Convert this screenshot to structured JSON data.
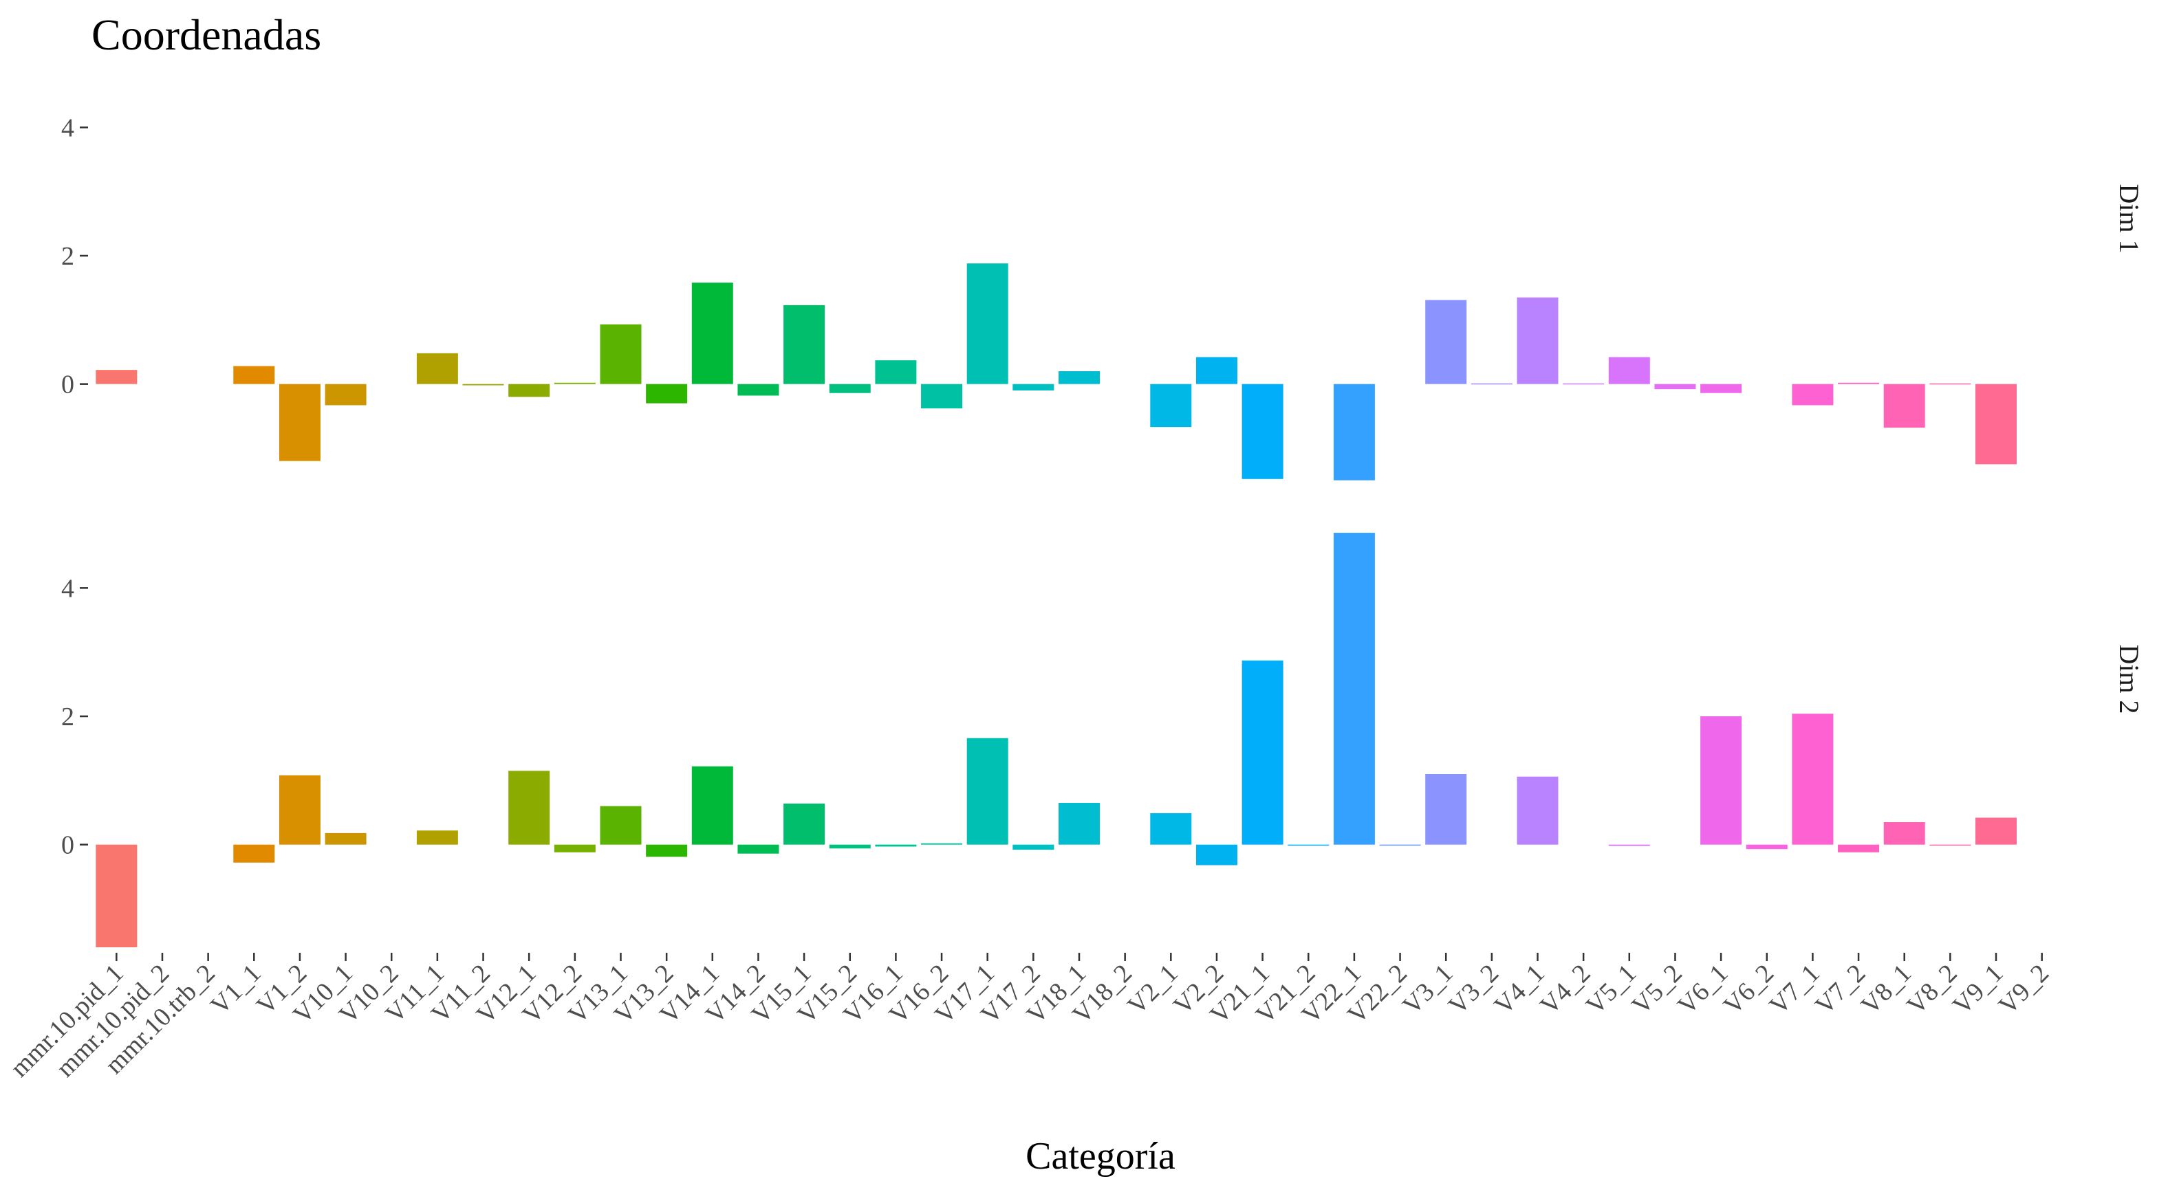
{
  "chart_data": {
    "type": "bar",
    "title": "Coordenadas",
    "xlabel": "Categoría",
    "ylabel": "",
    "ylim": [
      -1.6,
      4.4
    ],
    "yticks": [
      0,
      2,
      4
    ],
    "grid": false,
    "legend": "none",
    "facets": [
      "Dim 1",
      "Dim 2"
    ],
    "categories": [
      "mmr.10.pid_1",
      "mmr.10.pid_2",
      "mmr.10.trb_2",
      "V1_1",
      "V1_2",
      "V10_1",
      "V10_2",
      "V11_1",
      "V11_2",
      "V12_1",
      "V12_2",
      "V13_1",
      "V13_2",
      "V14_1",
      "V14_2",
      "V15_1",
      "V15_2",
      "V16_1",
      "V16_2",
      "V17_1",
      "V17_2",
      "V18_1",
      "V18_2",
      "V2_1",
      "V2_2",
      "V21_1",
      "V21_2",
      "V22_1",
      "V22_2",
      "V3_1",
      "V3_2",
      "V4_1",
      "V4_2",
      "V5_1",
      "V5_2",
      "V6_1",
      "V6_2",
      "V7_1",
      "V7_2",
      "V8_1",
      "V8_2",
      "V9_1",
      "V9_2"
    ],
    "colors": [
      "#F8766D",
      "#F17E4E",
      "#E7861B",
      "#DB8E00",
      "#CD9600",
      "#BE9C00",
      "#AEA200",
      "#9CA700",
      "#87AC00",
      "#6EB200",
      "#4CB500",
      "#00B81F",
      "#00BB44",
      "#00BE67",
      "#00C087",
      "#00C1A6",
      "#00C0BD",
      "#00BFC4",
      "#00BCD8",
      "#00B9E3",
      "#00B4EF",
      "#00ADFA",
      "#00A5FF",
      "#619CFF",
      "#8B95FF",
      "#A58AFF",
      "#C77CFF",
      "#D972FF",
      "#E76BF3",
      "#F066EA",
      "#FA62DB",
      "#FF61C9",
      "#FF63B6",
      "#FF679F",
      "#FF6C90",
      "#FC717F",
      "#F8766D",
      "#F8766D",
      "#F8766D",
      "#F8766D",
      "#F8766D",
      "#F8766D",
      "#F8766D"
    ],
    "bar_colors": [
      "#F8766D",
      "#F37A55",
      "#EA8331",
      "#E18A00",
      "#D89000",
      "#CB9600",
      "#BE9C00",
      "#B0A100",
      "#9FA600",
      "#8CAB00",
      "#76B000",
      "#5AB300",
      "#2DB600",
      "#00B938",
      "#00BC55",
      "#00BE6C",
      "#00C080",
      "#00C192",
      "#00C1A3",
      "#00C0B3",
      "#00C0C2",
      "#00BECF",
      "#00BBDB",
      "#00B8E5",
      "#00B3F0",
      "#00AEF9",
      "#00A8FF",
      "#34A0FF",
      "#6799FF",
      "#8B93FF",
      "#A58AFF",
      "#B983FF",
      "#CA7CFF",
      "#D874FC",
      "#E46DF4",
      "#EF67EB",
      "#F763E0",
      "#FD61D2",
      "#FF61C3",
      "#FF63B4",
      "#FF66A3",
      "#FF6A92",
      "#FC6F80"
    ],
    "series": [
      {
        "name": "Dim 1",
        "values": [
          0.22,
          0,
          0,
          0.28,
          -1.2,
          -0.33,
          0,
          0.48,
          -0.02,
          -0.2,
          0.02,
          0.93,
          -0.3,
          1.58,
          -0.18,
          1.23,
          -0.14,
          0.37,
          -0.38,
          1.88,
          -0.1,
          0.2,
          0,
          -0.67,
          0.42,
          -1.48,
          0,
          -1.5,
          0,
          1.31,
          0.01,
          1.35,
          0.01,
          0.42,
          -0.08,
          -0.14,
          0,
          -0.33,
          0.02,
          -0.68,
          0.01,
          -1.25,
          0
        ]
      },
      {
        "name": "Dim 2",
        "values": [
          -1.6,
          0,
          0,
          -0.28,
          1.08,
          0.18,
          0,
          0.22,
          0,
          1.15,
          -0.12,
          0.6,
          -0.19,
          1.22,
          -0.14,
          0.64,
          -0.06,
          -0.03,
          0.02,
          1.66,
          -0.08,
          0.65,
          0,
          0.49,
          -0.32,
          2.87,
          -0.01,
          4.86,
          -0.01,
          1.1,
          0,
          1.06,
          0,
          -0.02,
          0,
          2.0,
          -0.07,
          2.04,
          -0.12,
          0.35,
          -0.01,
          0.42,
          0
        ]
      }
    ]
  }
}
